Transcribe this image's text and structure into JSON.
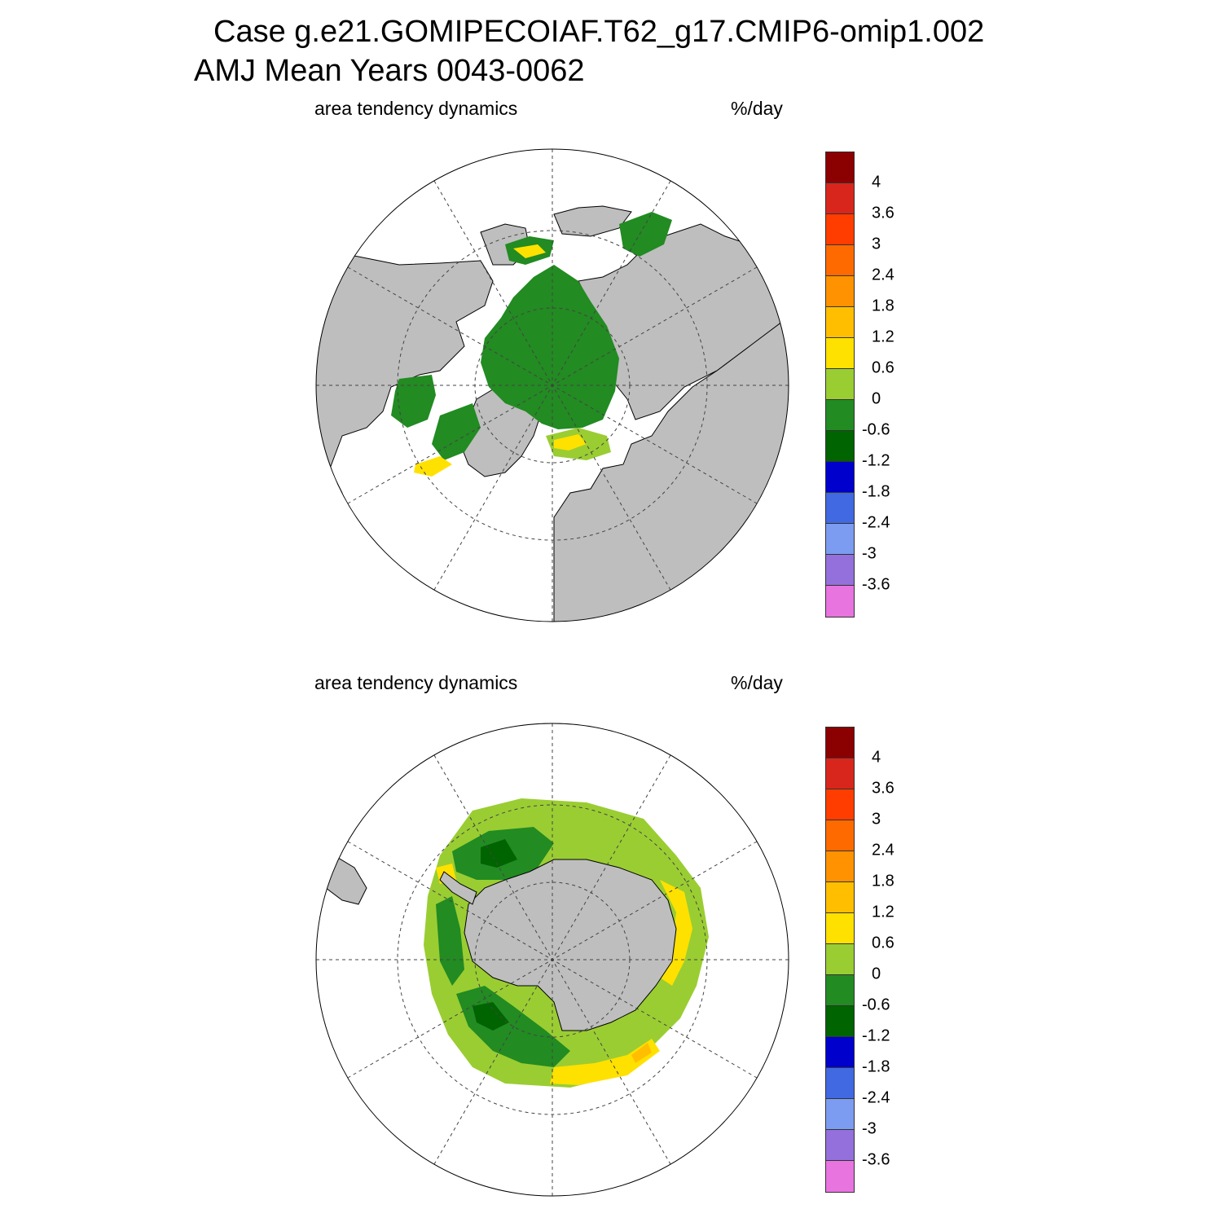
{
  "title": {
    "line1": "Case g.e21.GOMIPECOIAF.T62_g17.CMIP6-omip1.002",
    "line2": "AMJ Mean   Years 0043-0062"
  },
  "panels": [
    {
      "id": "north",
      "hemisphere": "Northern Hemisphere (polar stereographic)",
      "left_label": "area tendency dynamics",
      "right_label": "%/day"
    },
    {
      "id": "south",
      "hemisphere": "Southern Hemisphere (polar stereographic)",
      "left_label": "area tendency dynamics",
      "right_label": "%/day"
    }
  ],
  "colorbar": {
    "labels": [
      "4",
      "3.6",
      "3",
      "2.4",
      "1.8",
      "1.2",
      "0.6",
      "0",
      "-0.6",
      "-1.2",
      "-1.8",
      "-2.4",
      "-3",
      "-3.6"
    ],
    "colors": [
      "#8b0000",
      "#d9261c",
      "#ff3d00",
      "#ff6a00",
      "#ff9200",
      "#ffbf00",
      "#ffe100",
      "#9acd32",
      "#228b22",
      "#006400",
      "#0000cd",
      "#4169e1",
      "#7b9cf0",
      "#9370db",
      "#e874e0"
    ]
  },
  "colors": {
    "land": "#bebebe",
    "ocean": "#ffffff",
    "grid": "#444444"
  }
}
